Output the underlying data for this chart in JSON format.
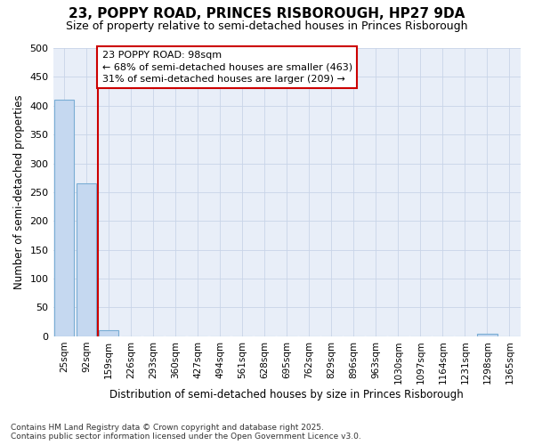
{
  "title": "23, POPPY ROAD, PRINCES RISBOROUGH, HP27 9DA",
  "subtitle": "Size of property relative to semi-detached houses in Princes Risborough",
  "xlabel": "Distribution of semi-detached houses by size in Princes Risborough",
  "ylabel": "Number of semi-detached properties",
  "categories": [
    "25sqm",
    "92sqm",
    "159sqm",
    "226sqm",
    "293sqm",
    "360sqm",
    "427sqm",
    "494sqm",
    "561sqm",
    "628sqm",
    "695sqm",
    "762sqm",
    "829sqm",
    "896sqm",
    "963sqm",
    "1030sqm",
    "1097sqm",
    "1164sqm",
    "1231sqm",
    "1298sqm",
    "1365sqm"
  ],
  "values": [
    410,
    265,
    10,
    0,
    0,
    0,
    0,
    0,
    0,
    0,
    0,
    0,
    0,
    0,
    0,
    0,
    0,
    0,
    0,
    5,
    0
  ],
  "bar_color": "#c5d8f0",
  "bar_edge_color": "#7aadd4",
  "grid_color": "#c8d4e8",
  "property_line_x": 1.5,
  "property_line_color": "#cc0000",
  "annotation_line1": "23 POPPY ROAD: 98sqm",
  "annotation_line2": "← 68% of semi-detached houses are smaller (463)",
  "annotation_line3": "31% of semi-detached houses are larger (209) →",
  "annotation_box_color": "#ffffff",
  "annotation_box_edge_color": "#cc0000",
  "footer_line1": "Contains HM Land Registry data © Crown copyright and database right 2025.",
  "footer_line2": "Contains public sector information licensed under the Open Government Licence v3.0.",
  "ylim": [
    0,
    500
  ],
  "yticks": [
    0,
    50,
    100,
    150,
    200,
    250,
    300,
    350,
    400,
    450,
    500
  ],
  "background_color": "#ffffff",
  "plot_bg_color": "#e8eef8"
}
